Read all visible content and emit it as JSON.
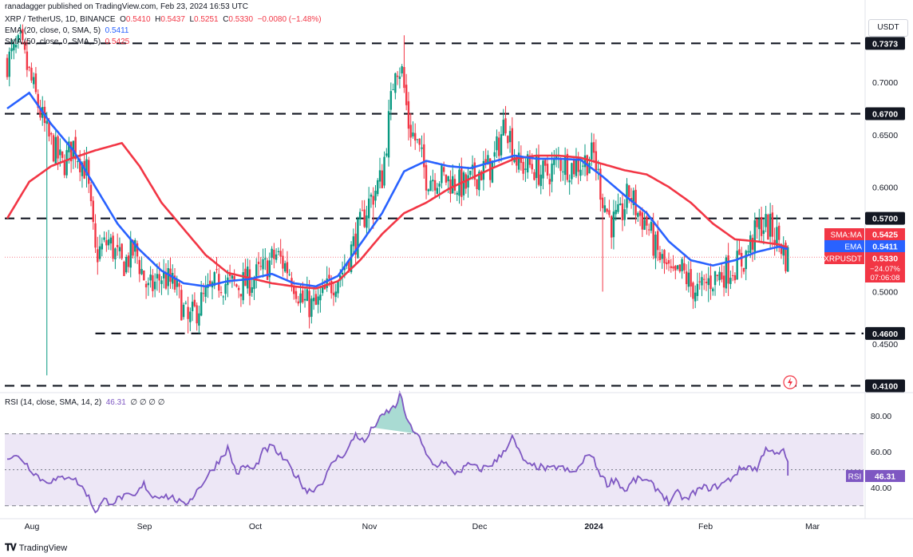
{
  "header": {
    "published": "ranadagger published on TradingView.com, Feb 23, 2024 16:53 UTC",
    "currency_button": "USDT",
    "footer_brand": "TradingView"
  },
  "legend": {
    "symbol": "XRP / TetherUS, 1D, BINANCE",
    "o_label": "O",
    "o_value": "0.5410",
    "h_label": "H",
    "h_value": "0.5437",
    "l_label": "L",
    "l_value": "0.5251",
    "c_label": "C",
    "c_value": "0.5330",
    "change": "−0.0080 (−1.48%)",
    "ema_label": "EMA (20, close, 0, SMA, 5)",
    "ema_value": "0.5411",
    "sma_label": "SMA (50, close, 0, SMA, 5)",
    "sma_value": "0.5425",
    "rsi_label": "RSI (14, close, SMA, 14, 2)",
    "rsi_value": "46.31",
    "rsi_extra": "∅ ∅ ∅ ∅"
  },
  "colors": {
    "up": "#089981",
    "down": "#f23645",
    "ema": "#2962ff",
    "sma": "#f23645",
    "rsi": "#7e57c2",
    "rsi_band": "#ede7f6",
    "level": "#131722"
  },
  "chart_data": [
    {
      "type": "candlestick",
      "title": "XRP / TetherUS, 1D, BINANCE",
      "ylim": [
        0.405,
        0.765
      ],
      "y_ticks": [
        "0.7000",
        "0.6500",
        "0.6000",
        "0.5000",
        "0.4500"
      ],
      "x_ticks": [
        "Aug",
        "Sep",
        "Oct",
        "Nov",
        "Dec",
        "2024",
        "Feb",
        "Mar"
      ],
      "levels": [
        {
          "label": "0.7373",
          "value": 0.7373
        },
        {
          "label": "0.6700",
          "value": 0.67
        },
        {
          "label": "0.5700",
          "value": 0.57
        },
        {
          "label": "0.4600",
          "value": 0.46
        },
        {
          "label": "0.4100",
          "value": 0.41
        }
      ],
      "price_tags": [
        {
          "name": "SMA:MA",
          "value_text": "0.5425",
          "value": 0.5425
        },
        {
          "name": "EMA",
          "value_text": "0.5411",
          "value": 0.5411
        },
        {
          "name": "XRPUSDT",
          "value_text": "0.5330",
          "extra1": "−24.07%",
          "extra2": "07:06:08",
          "value": 0.533
        }
      ],
      "close_anchors": [
        [
          0,
          0.72
        ],
        [
          6,
          0.735
        ],
        [
          11,
          0.7
        ],
        [
          18,
          0.65
        ],
        [
          25,
          0.62
        ],
        [
          30,
          0.64
        ],
        [
          36,
          0.615
        ],
        [
          40,
          0.535
        ],
        [
          46,
          0.548
        ],
        [
          52,
          0.525
        ],
        [
          58,
          0.54
        ],
        [
          64,
          0.5
        ],
        [
          70,
          0.515
        ],
        [
          76,
          0.505
        ],
        [
          82,
          0.47
        ],
        [
          88,
          0.49
        ],
        [
          96,
          0.51
        ],
        [
          104,
          0.505
        ],
        [
          110,
          0.51
        ],
        [
          116,
          0.52
        ],
        [
          122,
          0.535
        ],
        [
          128,
          0.52
        ],
        [
          134,
          0.49
        ],
        [
          140,
          0.485
        ],
        [
          146,
          0.505
        ],
        [
          152,
          0.52
        ],
        [
          158,
          0.55
        ],
        [
          164,
          0.585
        ],
        [
          170,
          0.61
        ],
        [
          174,
          0.68
        ],
        [
          176,
          0.72
        ],
        [
          179,
          0.71
        ],
        [
          182,
          0.66
        ],
        [
          186,
          0.64
        ],
        [
          190,
          0.61
        ],
        [
          196,
          0.61
        ],
        [
          202,
          0.605
        ],
        [
          208,
          0.6
        ],
        [
          214,
          0.615
        ],
        [
          220,
          0.62
        ],
        [
          226,
          0.665
        ],
        [
          229,
          0.64
        ],
        [
          232,
          0.62
        ],
        [
          238,
          0.62
        ],
        [
          244,
          0.61
        ],
        [
          250,
          0.625
        ],
        [
          256,
          0.62
        ],
        [
          262,
          0.625
        ],
        [
          266,
          0.63
        ],
        [
          270,
          0.59
        ],
        [
          274,
          0.565
        ],
        [
          278,
          0.57
        ],
        [
          282,
          0.595
        ],
        [
          286,
          0.575
        ],
        [
          290,
          0.565
        ],
        [
          294,
          0.54
        ],
        [
          298,
          0.525
        ],
        [
          302,
          0.51
        ],
        [
          306,
          0.52
        ],
        [
          310,
          0.505
        ],
        [
          314,
          0.5
        ],
        [
          318,
          0.51
        ],
        [
          322,
          0.515
        ],
        [
          326,
          0.52
        ],
        [
          330,
          0.525
        ],
        [
          334,
          0.53
        ],
        [
          338,
          0.55
        ],
        [
          342,
          0.565
        ],
        [
          346,
          0.56
        ],
        [
          350,
          0.55
        ],
        [
          353,
          0.533
        ]
      ],
      "ema_anchors": [
        [
          0,
          0.675
        ],
        [
          10,
          0.69
        ],
        [
          20,
          0.66
        ],
        [
          30,
          0.635
        ],
        [
          40,
          0.6
        ],
        [
          50,
          0.565
        ],
        [
          60,
          0.54
        ],
        [
          70,
          0.52
        ],
        [
          80,
          0.508
        ],
        [
          90,
          0.505
        ],
        [
          100,
          0.51
        ],
        [
          110,
          0.512
        ],
        [
          120,
          0.517
        ],
        [
          130,
          0.508
        ],
        [
          140,
          0.505
        ],
        [
          150,
          0.515
        ],
        [
          160,
          0.545
        ],
        [
          170,
          0.575
        ],
        [
          180,
          0.615
        ],
        [
          190,
          0.625
        ],
        [
          200,
          0.62
        ],
        [
          210,
          0.618
        ],
        [
          220,
          0.624
        ],
        [
          230,
          0.63
        ],
        [
          240,
          0.627
        ],
        [
          250,
          0.627
        ],
        [
          260,
          0.626
        ],
        [
          270,
          0.61
        ],
        [
          280,
          0.592
        ],
        [
          290,
          0.575
        ],
        [
          300,
          0.548
        ],
        [
          310,
          0.53
        ],
        [
          320,
          0.525
        ],
        [
          330,
          0.53
        ],
        [
          340,
          0.538
        ],
        [
          350,
          0.543
        ],
        [
          353,
          0.541
        ]
      ],
      "sma_anchors": [
        [
          0,
          0.57
        ],
        [
          10,
          0.605
        ],
        [
          20,
          0.62
        ],
        [
          30,
          0.628
        ],
        [
          40,
          0.635
        ],
        [
          52,
          0.642
        ],
        [
          60,
          0.62
        ],
        [
          70,
          0.585
        ],
        [
          80,
          0.56
        ],
        [
          90,
          0.535
        ],
        [
          100,
          0.518
        ],
        [
          110,
          0.513
        ],
        [
          120,
          0.508
        ],
        [
          130,
          0.505
        ],
        [
          140,
          0.503
        ],
        [
          150,
          0.51
        ],
        [
          160,
          0.53
        ],
        [
          170,
          0.555
        ],
        [
          180,
          0.575
        ],
        [
          190,
          0.585
        ],
        [
          200,
          0.598
        ],
        [
          210,
          0.608
        ],
        [
          220,
          0.618
        ],
        [
          230,
          0.627
        ],
        [
          240,
          0.63
        ],
        [
          250,
          0.63
        ],
        [
          260,
          0.628
        ],
        [
          270,
          0.622
        ],
        [
          280,
          0.616
        ],
        [
          290,
          0.612
        ],
        [
          300,
          0.6
        ],
        [
          310,
          0.585
        ],
        [
          320,
          0.565
        ],
        [
          330,
          0.55
        ],
        [
          340,
          0.548
        ],
        [
          350,
          0.545
        ],
        [
          353,
          0.5425
        ]
      ],
      "spikes": [
        [
          18,
          0.42
        ],
        [
          82,
          0.46
        ],
        [
          166,
          0.56
        ],
        [
          180,
          0.745
        ],
        [
          270,
          0.5
        ],
        [
          318,
          0.49
        ],
        [
          344,
          0.582
        ]
      ]
    },
    {
      "type": "line",
      "title": "RSI (14, close, SMA, 14, 2)",
      "ylim": [
        25,
        92
      ],
      "y_ticks": [
        "80.00",
        "60.00",
        "40.00"
      ],
      "band": [
        30,
        70
      ],
      "mid": 50,
      "last_label": "RSI",
      "last_value": "46.31",
      "anchors": [
        [
          0,
          57
        ],
        [
          6,
          57
        ],
        [
          11,
          50
        ],
        [
          16,
          44
        ],
        [
          22,
          44
        ],
        [
          28,
          47
        ],
        [
          32,
          43
        ],
        [
          36,
          37
        ],
        [
          40,
          27
        ],
        [
          44,
          33
        ],
        [
          48,
          32
        ],
        [
          52,
          35
        ],
        [
          58,
          35
        ],
        [
          62,
          42
        ],
        [
          66,
          35
        ],
        [
          70,
          36
        ],
        [
          76,
          34
        ],
        [
          80,
          30
        ],
        [
          84,
          35
        ],
        [
          90,
          45
        ],
        [
          96,
          55
        ],
        [
          100,
          62
        ],
        [
          104,
          48
        ],
        [
          108,
          52
        ],
        [
          112,
          50
        ],
        [
          116,
          60
        ],
        [
          120,
          63
        ],
        [
          126,
          55
        ],
        [
          132,
          45
        ],
        [
          136,
          38
        ],
        [
          140,
          40
        ],
        [
          144,
          45
        ],
        [
          148,
          55
        ],
        [
          154,
          60
        ],
        [
          158,
          70
        ],
        [
          162,
          65
        ],
        [
          166,
          74
        ],
        [
          172,
          82
        ],
        [
          176,
          85
        ],
        [
          178,
          92
        ],
        [
          182,
          75
        ],
        [
          186,
          70
        ],
        [
          190,
          58
        ],
        [
          194,
          52
        ],
        [
          198,
          55
        ],
        [
          202,
          48
        ],
        [
          206,
          50
        ],
        [
          210,
          53
        ],
        [
          214,
          50
        ],
        [
          218,
          52
        ],
        [
          222,
          55
        ],
        [
          226,
          62
        ],
        [
          229,
          68
        ],
        [
          232,
          60
        ],
        [
          236,
          52
        ],
        [
          240,
          52
        ],
        [
          246,
          50
        ],
        [
          250,
          52
        ],
        [
          256,
          48
        ],
        [
          260,
          52
        ],
        [
          264,
          60
        ],
        [
          268,
          50
        ],
        [
          272,
          42
        ],
        [
          276,
          45
        ],
        [
          280,
          38
        ],
        [
          284,
          44
        ],
        [
          288,
          45
        ],
        [
          292,
          42
        ],
        [
          296,
          38
        ],
        [
          300,
          32
        ],
        [
          304,
          37
        ],
        [
          308,
          33
        ],
        [
          312,
          38
        ],
        [
          316,
          40
        ],
        [
          320,
          40
        ],
        [
          324,
          42
        ],
        [
          328,
          45
        ],
        [
          332,
          50
        ],
        [
          336,
          52
        ],
        [
          340,
          50
        ],
        [
          344,
          63
        ],
        [
          348,
          58
        ],
        [
          352,
          60
        ],
        [
          356,
          50
        ],
        [
          358,
          46.31
        ]
      ]
    }
  ]
}
